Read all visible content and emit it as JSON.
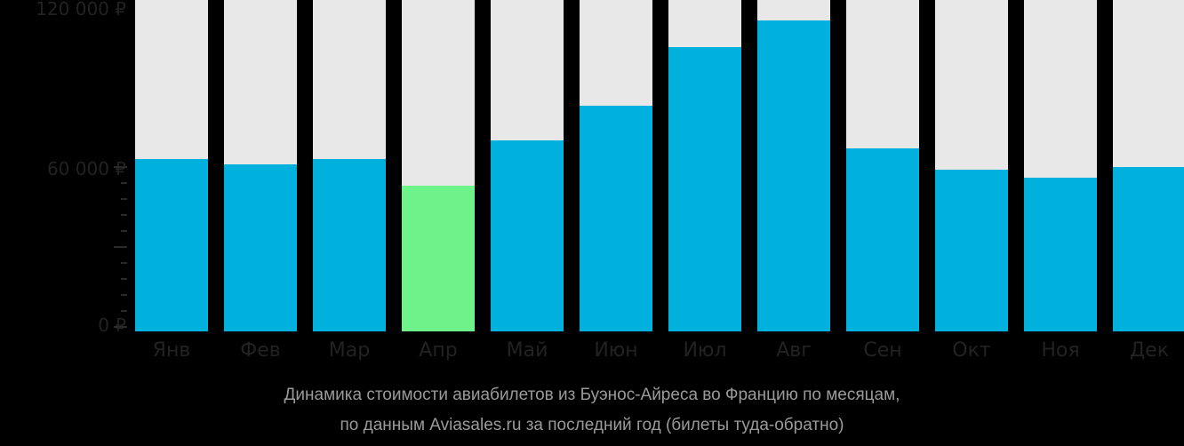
{
  "chart_data": {
    "type": "bar",
    "title": "Динамика стоимости авиабилетов из Буэнос-Айреса во Францию по месяцам, по данным Aviasales.ru за последний год (билеты туда-обратно)",
    "xlabel": "",
    "ylabel": "",
    "categories": [
      "Янв",
      "Фев",
      "Мар",
      "Апр",
      "Май",
      "Июн",
      "Июл",
      "Авг",
      "Сен",
      "Окт",
      "Ноя",
      "Дек"
    ],
    "values": [
      63000,
      61000,
      63000,
      53000,
      70000,
      83000,
      105000,
      115000,
      67000,
      59000,
      56000,
      60000
    ],
    "ylim": [
      0,
      120000
    ],
    "yticks": [
      "0 ₽",
      "60 000 ₽",
      "120 000 ₽"
    ],
    "highlight_min_index": 3,
    "colors": {
      "bar": "#00b0dd",
      "min_bar": "#6ef38a",
      "bar_background": "#e8e8e8"
    },
    "grid": false,
    "legend": "none"
  },
  "axis": {
    "y_labels": [
      "120 000 ₽",
      "60 000 ₽",
      "0 ₽"
    ]
  },
  "caption": {
    "line1": "Динамика стоимости авиабилетов из Буэнос-Айреса во Францию по месяцам,",
    "line2": "по данным Aviasales.ru за последний год (билеты туда-обратно)"
  }
}
